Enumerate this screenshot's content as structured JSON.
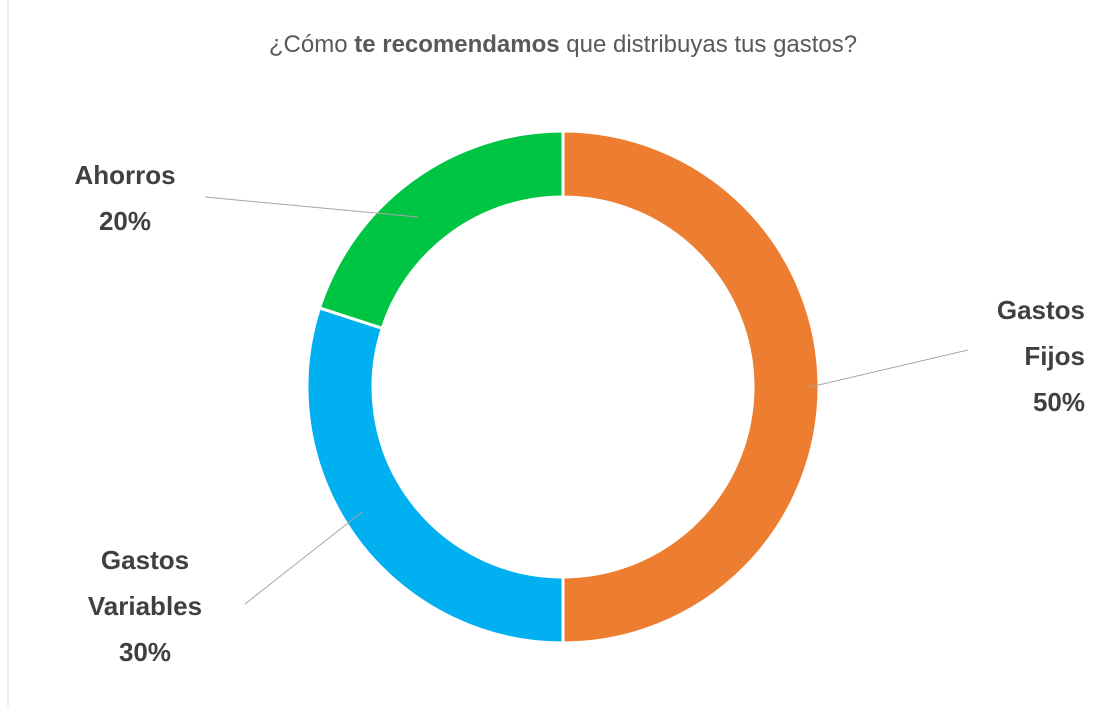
{
  "chart_data": {
    "type": "donut",
    "title": [
      {
        "text": "¿Cómo "
      },
      {
        "text": "te recomendamos",
        "bold": true
      },
      {
        "text": " que distribuyas tus gastos?"
      }
    ],
    "categories": [
      "Gastos Fijos",
      "Gastos Variables",
      "Ahorros"
    ],
    "values": [
      50,
      30,
      20
    ],
    "value_labels": [
      "50%",
      "30%",
      "20%"
    ],
    "colors": [
      "#ED7D31",
      "#00B0F0",
      "#00C542"
    ]
  }
}
